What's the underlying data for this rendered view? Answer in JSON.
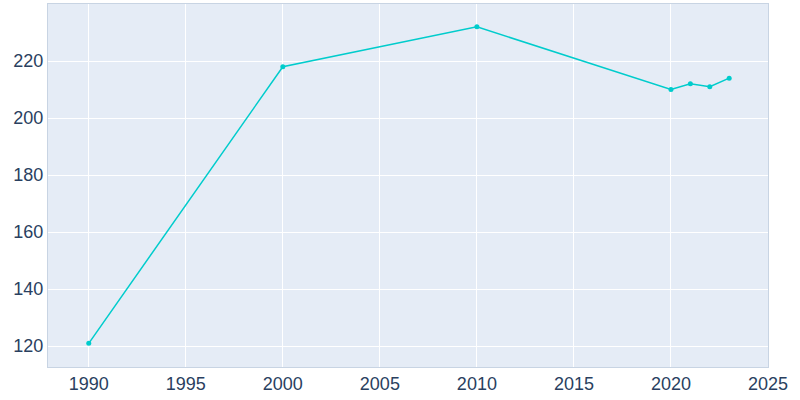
{
  "chart_data": {
    "type": "line",
    "x": [
      1990,
      2000,
      2010,
      2020,
      2021,
      2022,
      2023
    ],
    "values": [
      121,
      218,
      232,
      210,
      212,
      211,
      214
    ],
    "color": "#00cccc",
    "marker": "circle",
    "line_style": "solid",
    "xlim": [
      1987.9,
      2025
    ],
    "xticks": [
      1990,
      1995,
      2000,
      2005,
      2010,
      2015,
      2020,
      2025
    ],
    "ylim": [
      112.7,
      240
    ],
    "yticks": [
      120,
      140,
      160,
      180,
      200,
      220
    ],
    "grid": true
  }
}
